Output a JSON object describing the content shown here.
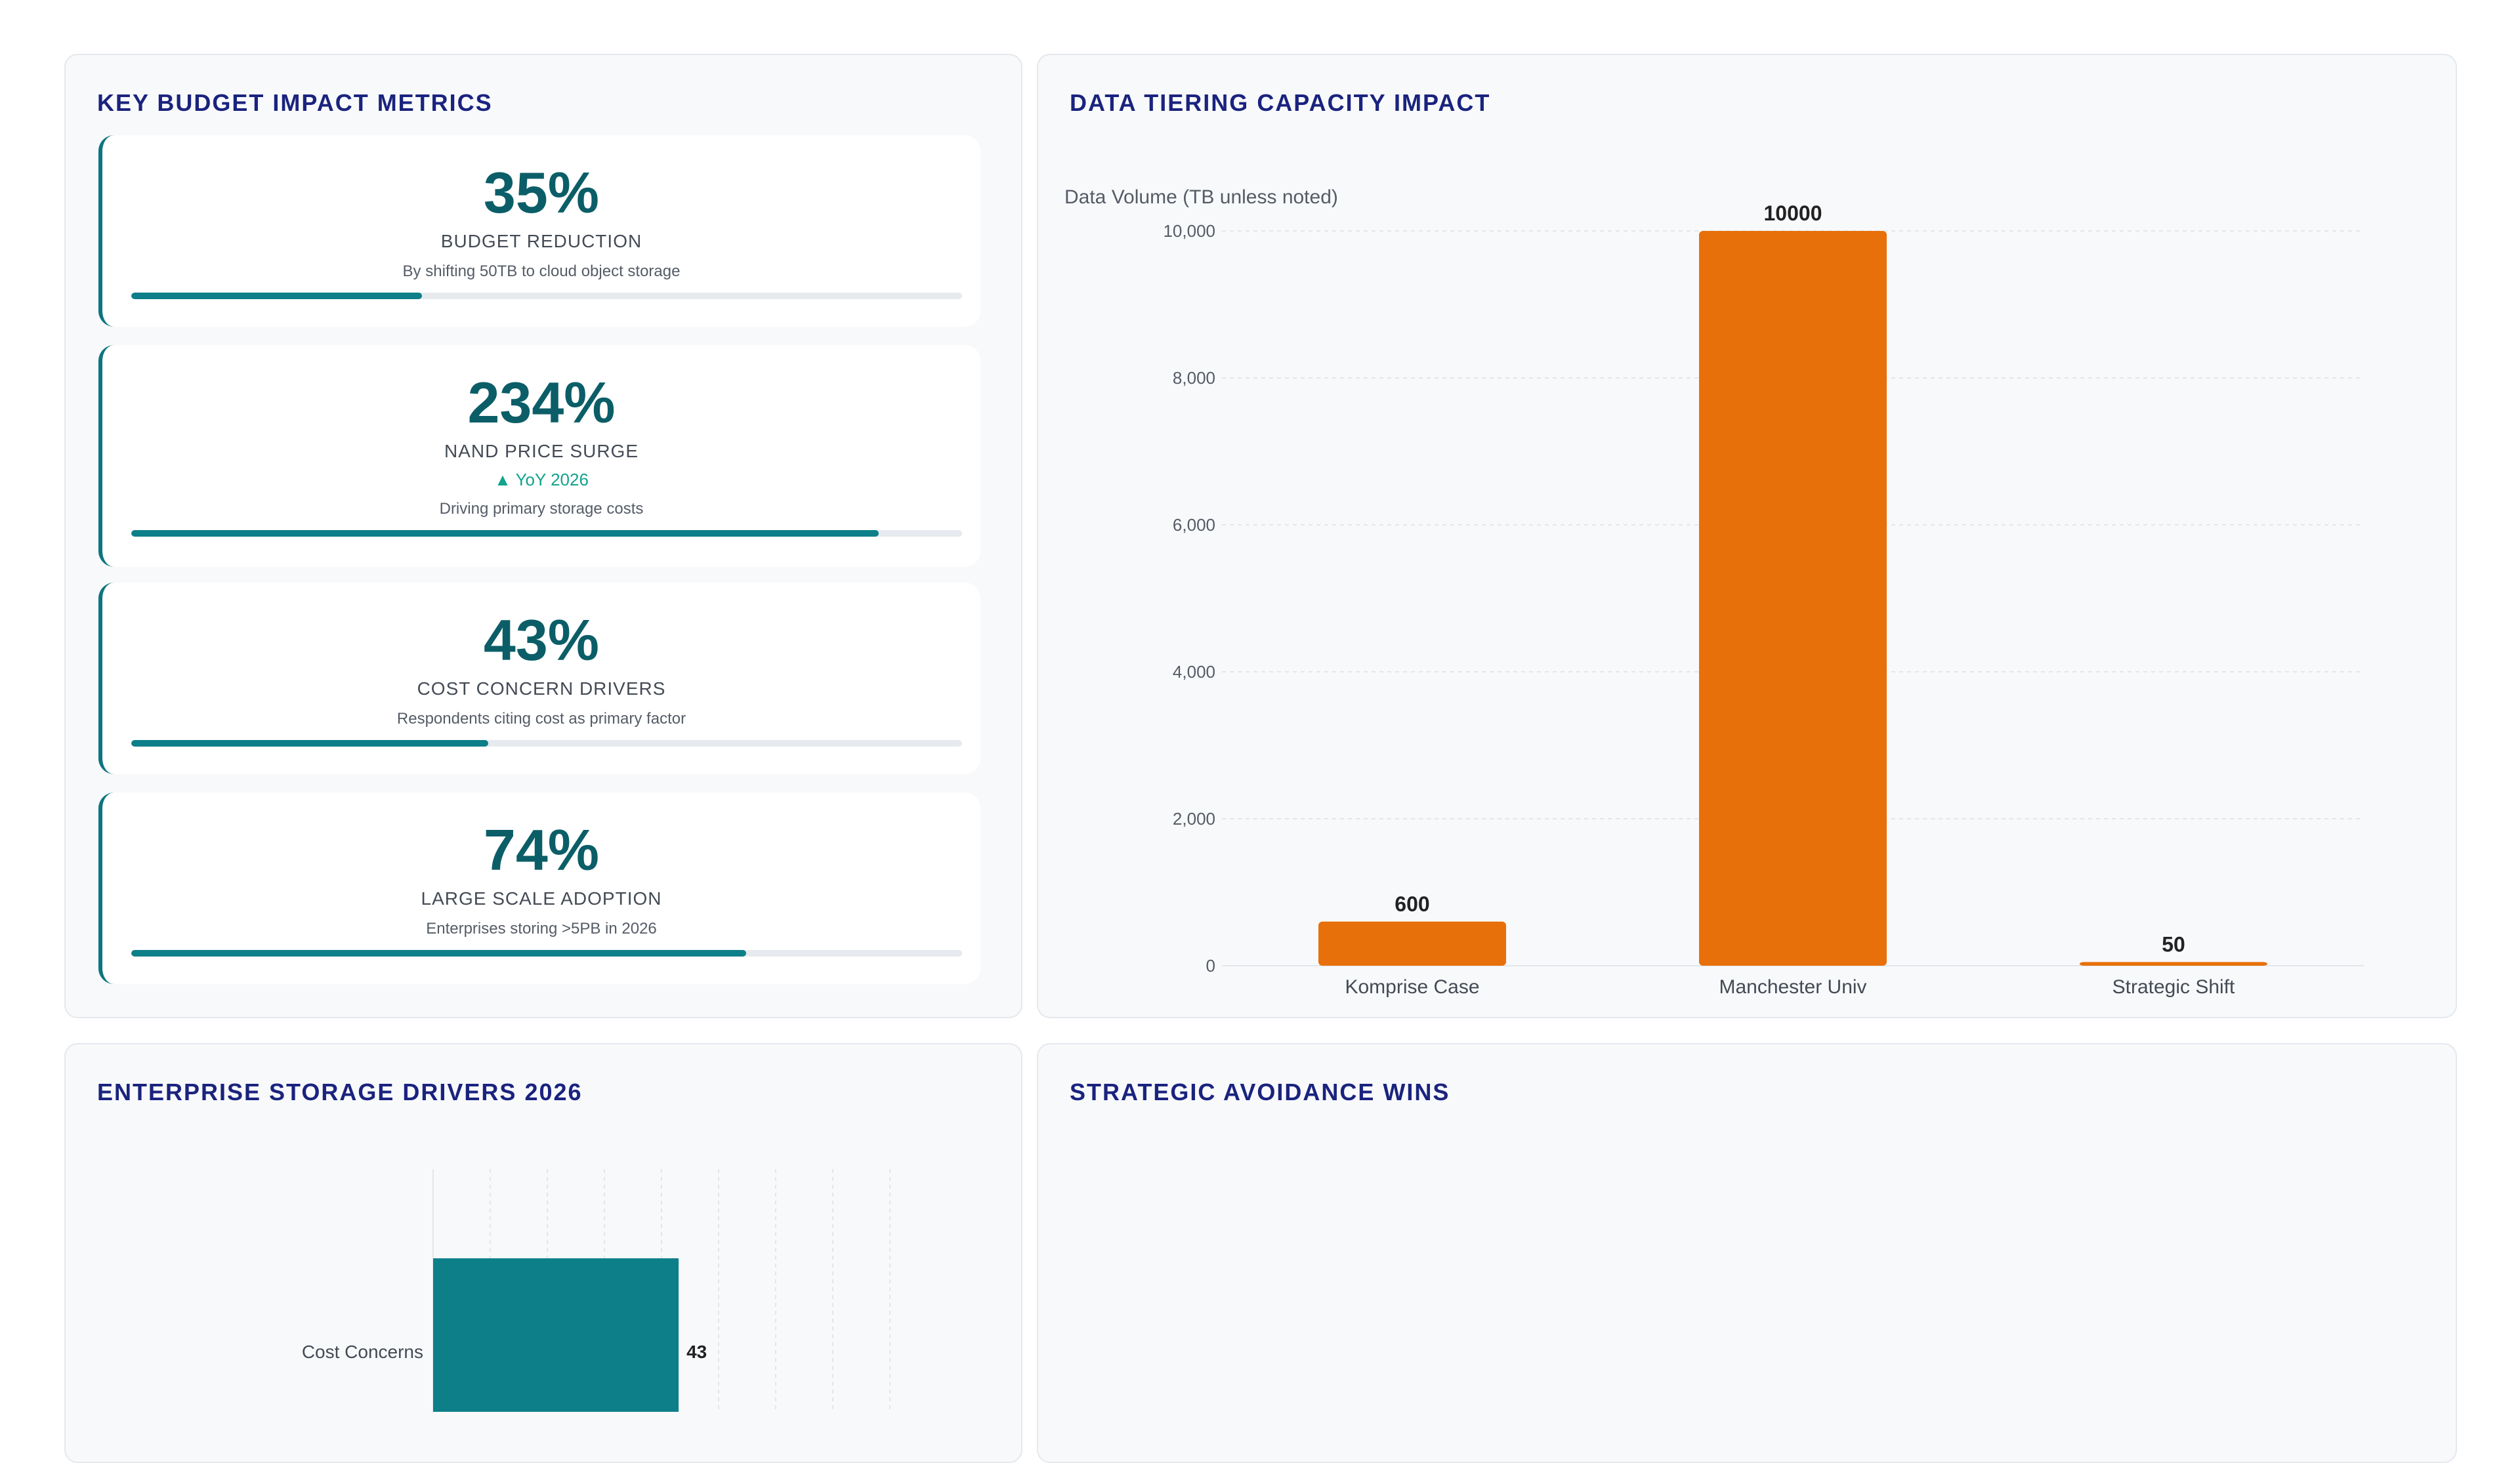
{
  "panels": {
    "kpi_title": "KEY BUDGET IMPACT METRICS",
    "tiering_title": "DATA TIERING CAPACITY IMPACT",
    "drivers_title": "ENTERPRISE STORAGE DRIVERS 2026",
    "avoidance_title": "STRATEGIC AVOIDANCE WINS"
  },
  "kpis": [
    {
      "value": "35%",
      "label": "BUDGET REDUCTION",
      "trend": "",
      "desc": "By shifting 50TB to cloud object storage",
      "progress": 0.35
    },
    {
      "value": "234%",
      "label": "NAND PRICE SURGE",
      "trend": "▲ YoY 2026",
      "desc": "Driving primary storage costs",
      "progress": 0.9
    },
    {
      "value": "43%",
      "label": "COST CONCERN DRIVERS",
      "trend": "",
      "desc": "Respondents citing cost as primary factor",
      "progress": 0.43
    },
    {
      "value": "74%",
      "label": "LARGE SCALE ADOPTION",
      "trend": "",
      "desc": "Enterprises storing >5PB in 2026",
      "progress": 0.74
    }
  ],
  "colors": {
    "accent_teal": "#0d7f89",
    "bar_orange": "#e8700a",
    "title_navy": "#1a237e"
  },
  "chart_data": [
    {
      "type": "bar",
      "ylabel": "Data Volume (TB unless noted)",
      "categories": [
        "Komprise Case",
        "Manchester Univ",
        "Strategic Shift"
      ],
      "values": [
        600,
        10000,
        50
      ],
      "data_labels": [
        "600",
        "10000",
        "50"
      ],
      "ylim": [
        0,
        10000
      ],
      "yticks": [
        0,
        2000,
        4000,
        6000,
        8000,
        10000
      ],
      "ytick_labels": [
        "0",
        "2,000",
        "4,000",
        "6,000",
        "8,000",
        "10,000"
      ],
      "grid": true
    },
    {
      "type": "bar",
      "orientation": "horizontal",
      "categories": [
        "Cost Concerns"
      ],
      "values": [
        43
      ],
      "data_labels": [
        "43"
      ],
      "grid": true
    }
  ]
}
